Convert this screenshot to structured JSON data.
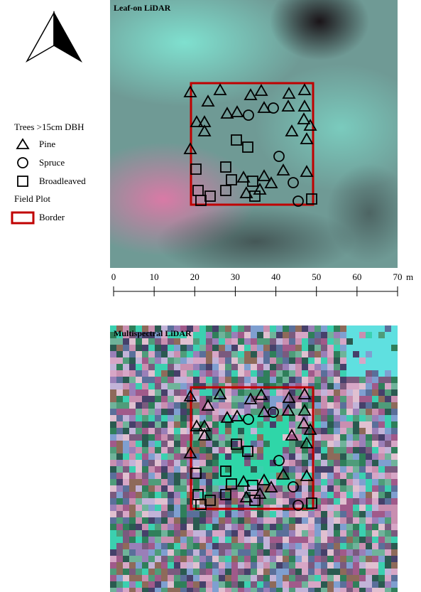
{
  "panels": [
    {
      "title": "Leaf-on LiDAR"
    },
    {
      "title": "Multispectral LiDAR"
    }
  ],
  "legend": {
    "title": "Trees >15cm DBH",
    "items": [
      "Pine",
      "Spruce",
      "Broadleaved"
    ],
    "plot_title": "Field Plot",
    "plot_item": "Border"
  },
  "scale_bar": {
    "ticks": [
      0,
      10,
      20,
      30,
      40,
      50,
      60,
      70
    ],
    "unit": "m"
  }
}
